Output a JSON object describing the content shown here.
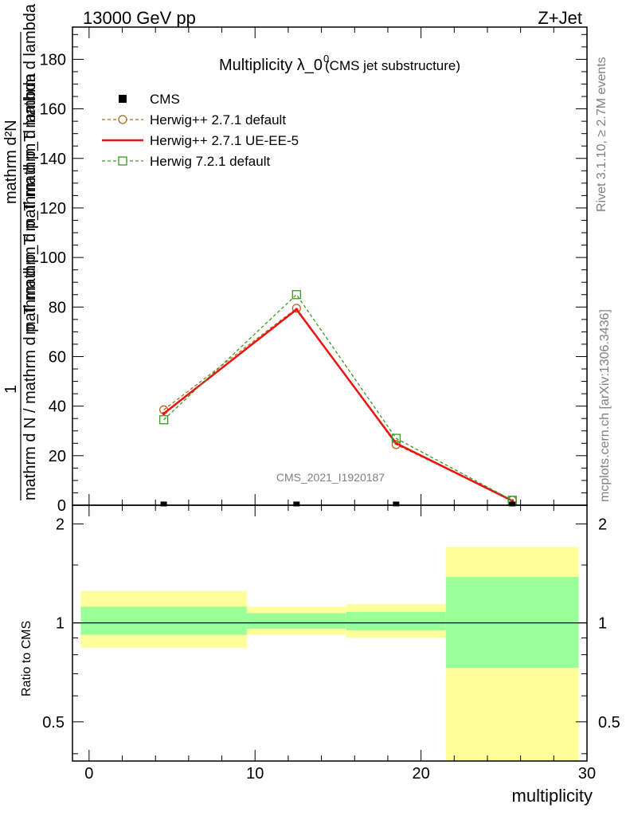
{
  "header": {
    "left": "13000 GeV pp",
    "right": "Z+Jet"
  },
  "side_labels": {
    "rivet": "Rivet 3.1.10, ≥ 2.7M events",
    "mcplots": "mcplots.cern.ch [arXiv:1306.3436]"
  },
  "watermark": "CMS_2021_I1920187",
  "title": {
    "main": "Multiplicity λ_0",
    "sup": "0",
    "sub": "(CMS jet substructure)"
  },
  "ylabel": {
    "numerator": "mathrm d²N",
    "numerator_line2": "mathrm d p_T mathrm d p_T mathrm d lambda",
    "one": "1",
    "denominator": "mathrm d N / mathrm d p_T mathrm d p_T mathrm d lambda"
  },
  "ratio_ylabel": "Ratio to CMS",
  "xlabel": "multiplicity",
  "legend": [
    {
      "label": "CMS",
      "color": "#000000",
      "style": "data"
    },
    {
      "label": "Herwig++ 2.7.1 default",
      "color": "#b5651d",
      "style": "dashed-circle"
    },
    {
      "label": "Herwig++ 2.7.1 UE-EE-5",
      "color": "#ee1111",
      "style": "solid"
    },
    {
      "label": "Herwig 7.2.1 default",
      "color": "#3a9b1f",
      "style": "dashed-square"
    }
  ],
  "chart_data": [
    {
      "type": "line",
      "panel": "main",
      "xlim": [
        -1,
        30
      ],
      "ylim": [
        0,
        193
      ],
      "x_ticks": [
        0,
        10,
        20,
        30
      ],
      "y_ticks": [
        20,
        40,
        60,
        80,
        100,
        120,
        140,
        160,
        180
      ],
      "y_tick_labels": [
        "20",
        "40",
        "60",
        "80",
        "100",
        "120",
        "140",
        "160",
        "180"
      ],
      "data_points": {
        "name": "CMS",
        "x": [
          4.5,
          12.5,
          18.5,
          25.5
        ],
        "y": [
          0.5,
          0.5,
          0.5,
          0.5
        ]
      },
      "series": [
        {
          "name": "Herwig++ 2.7.1 default",
          "color": "#b5651d",
          "x": [
            4.5,
            12.5,
            18.5,
            25.5
          ],
          "y": [
            38.5,
            79.5,
            24.5,
            2.0
          ]
        },
        {
          "name": "Herwig++ 2.7.1 UE-EE-5",
          "color": "#ee1111",
          "x": [
            4.5,
            12.5,
            18.5,
            25.5
          ],
          "y": [
            37.0,
            79.0,
            25.0,
            1.8
          ]
        },
        {
          "name": "Herwig 7.2.1 default",
          "color": "#3a9b1f",
          "x": [
            4.5,
            12.5,
            18.5,
            25.5
          ],
          "y": [
            34.5,
            85.0,
            27.0,
            2.0
          ]
        }
      ]
    },
    {
      "type": "area",
      "panel": "ratio",
      "xlim": [
        -1,
        30
      ],
      "ylim": [
        0.38,
        2.28
      ],
      "log_y": true,
      "y_ticks": [
        0.5,
        1,
        2
      ],
      "y_tick_labels": [
        "0.5",
        "1",
        "2"
      ],
      "x_tick_labels": [
        "0",
        "10",
        "20",
        "30"
      ],
      "reference": 1,
      "bands": [
        {
          "x0": -0.5,
          "x1": 9.5,
          "yellow": [
            0.84,
            1.25
          ],
          "green": [
            0.92,
            1.12
          ]
        },
        {
          "x0": 9.5,
          "x1": 15.5,
          "yellow": [
            0.92,
            1.12
          ],
          "green": [
            0.96,
            1.07
          ]
        },
        {
          "x0": 15.5,
          "x1": 21.5,
          "yellow": [
            0.9,
            1.14
          ],
          "green": [
            0.95,
            1.08
          ]
        },
        {
          "x0": 21.5,
          "x1": 29.5,
          "yellow": [
            0.38,
            1.7
          ],
          "green": [
            0.73,
            1.38
          ]
        }
      ],
      "colors": {
        "yellow": "#ffff99",
        "green": "#99ff99"
      }
    }
  ]
}
